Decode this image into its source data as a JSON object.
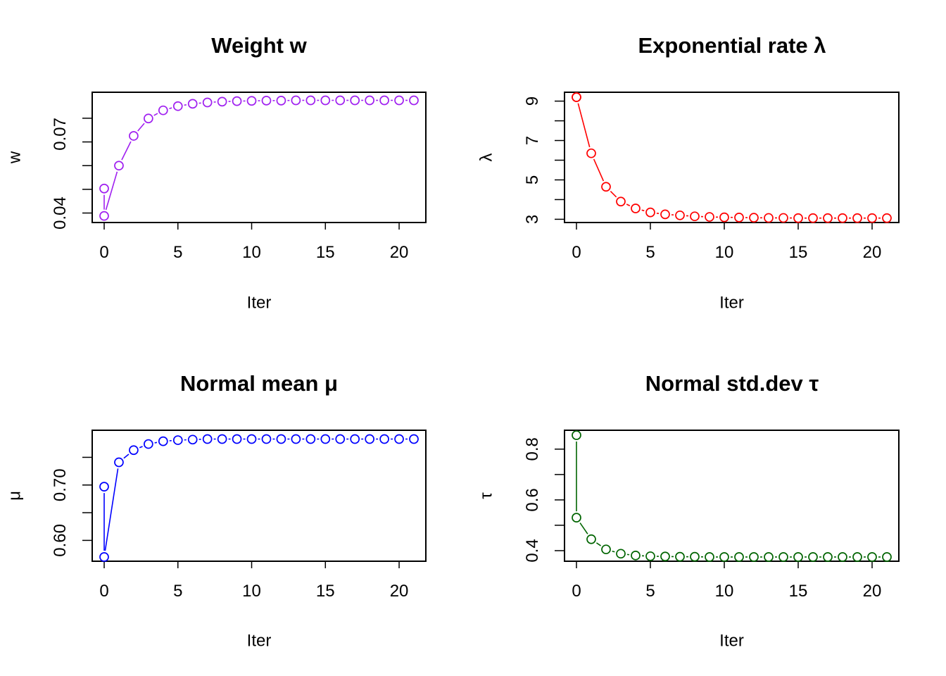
{
  "chart_data": [
    {
      "type": "scatter",
      "title": "Weight w",
      "xlabel": "Iter",
      "ylabel": "w",
      "color": "#a020f0",
      "xlim": [
        0,
        21
      ],
      "ylim": [
        0.038,
        0.084
      ],
      "xticks": [
        0,
        5,
        10,
        15,
        20
      ],
      "xtick_labels": [
        "0",
        "5",
        "10",
        "15",
        "20"
      ],
      "yticks": [
        0.04,
        0.055,
        0.07,
        0.085
      ],
      "ytick_labels": [
        "0.04",
        "0.07"
      ],
      "ytick_label_values": [
        0.04,
        0.07
      ],
      "yticks_minor": [
        0.04,
        0.049,
        0.058,
        0.067,
        0.076
      ],
      "x": [
        0,
        0,
        1,
        2,
        3,
        4,
        5,
        6,
        7,
        8,
        9,
        10,
        11,
        12,
        13,
        14,
        15,
        16,
        17,
        18,
        19,
        20,
        21
      ],
      "y": [
        0.0493,
        0.0389,
        0.058,
        0.0693,
        0.0759,
        0.079,
        0.0806,
        0.0815,
        0.082,
        0.0823,
        0.0825,
        0.0826,
        0.0827,
        0.0827,
        0.0828,
        0.0828,
        0.0828,
        0.0828,
        0.0828,
        0.0828,
        0.0828,
        0.0828,
        0.0828
      ]
    },
    {
      "type": "scatter",
      "title": "Exponential rate λ",
      "xlabel": "Iter",
      "ylabel": "λ",
      "color": "#ff0000",
      "xlim": [
        0,
        21
      ],
      "ylim": [
        3.05,
        9.2
      ],
      "xticks": [
        0,
        5,
        10,
        15,
        20
      ],
      "xtick_labels": [
        "0",
        "5",
        "10",
        "15",
        "20"
      ],
      "ytick_labels": [
        "3",
        "5",
        "7",
        "9"
      ],
      "ytick_label_values": [
        3,
        5,
        7,
        9
      ],
      "yticks_minor": [
        3,
        4,
        5,
        6,
        7,
        8,
        9
      ],
      "x": [
        0,
        0,
        1,
        2,
        3,
        4,
        5,
        6,
        7,
        8,
        9,
        10,
        11,
        12,
        13,
        14,
        15,
        16,
        17,
        18,
        19,
        20,
        21
      ],
      "y": [
        9.2,
        9.2,
        6.35,
        4.65,
        3.9,
        3.55,
        3.35,
        3.25,
        3.2,
        3.15,
        3.12,
        3.1,
        3.09,
        3.08,
        3.07,
        3.07,
        3.06,
        3.06,
        3.06,
        3.06,
        3.06,
        3.06,
        3.06
      ]
    },
    {
      "type": "scatter",
      "title": "Normal mean μ",
      "xlabel": "Iter",
      "ylabel": "μ",
      "color": "#0000ff",
      "xlim": [
        0,
        21
      ],
      "ylim": [
        0.57,
        0.79
      ],
      "xticks": [
        0,
        5,
        10,
        15,
        20
      ],
      "xtick_labels": [
        "0",
        "5",
        "10",
        "15",
        "20"
      ],
      "ytick_labels": [
        "0.60",
        "0.70"
      ],
      "ytick_label_values": [
        0.6,
        0.7
      ],
      "yticks_minor": [
        0.6,
        0.65,
        0.7,
        0.75
      ],
      "x": [
        0,
        0,
        1,
        2,
        3,
        4,
        5,
        6,
        7,
        8,
        9,
        10,
        11,
        12,
        13,
        14,
        15,
        16,
        17,
        18,
        19,
        20,
        21
      ],
      "y": [
        0.697,
        0.57,
        0.741,
        0.763,
        0.774,
        0.779,
        0.781,
        0.782,
        0.783,
        0.783,
        0.783,
        0.783,
        0.783,
        0.783,
        0.783,
        0.783,
        0.783,
        0.783,
        0.783,
        0.783,
        0.783,
        0.783,
        0.783
      ]
    },
    {
      "type": "scatter",
      "title": "Normal std.dev τ",
      "xlabel": "Iter",
      "ylabel": "τ",
      "color": "#006400",
      "xlim": [
        0,
        21
      ],
      "ylim": [
        0.375,
        0.855
      ],
      "xticks": [
        0,
        5,
        10,
        15,
        20
      ],
      "xtick_labels": [
        "0",
        "5",
        "10",
        "15",
        "20"
      ],
      "ytick_labels": [
        "0.4",
        "0.6",
        "0.8"
      ],
      "ytick_label_values": [
        0.4,
        0.6,
        0.8
      ],
      "yticks_minor": [
        0.4,
        0.5,
        0.6,
        0.7,
        0.8
      ],
      "x": [
        0,
        0,
        1,
        2,
        3,
        4,
        5,
        6,
        7,
        8,
        9,
        10,
        11,
        12,
        13,
        14,
        15,
        16,
        17,
        18,
        19,
        20,
        21
      ],
      "y": [
        0.855,
        0.53,
        0.445,
        0.405,
        0.388,
        0.381,
        0.378,
        0.377,
        0.376,
        0.376,
        0.375,
        0.375,
        0.375,
        0.375,
        0.375,
        0.375,
        0.375,
        0.375,
        0.375,
        0.375,
        0.375,
        0.375,
        0.375
      ]
    }
  ]
}
